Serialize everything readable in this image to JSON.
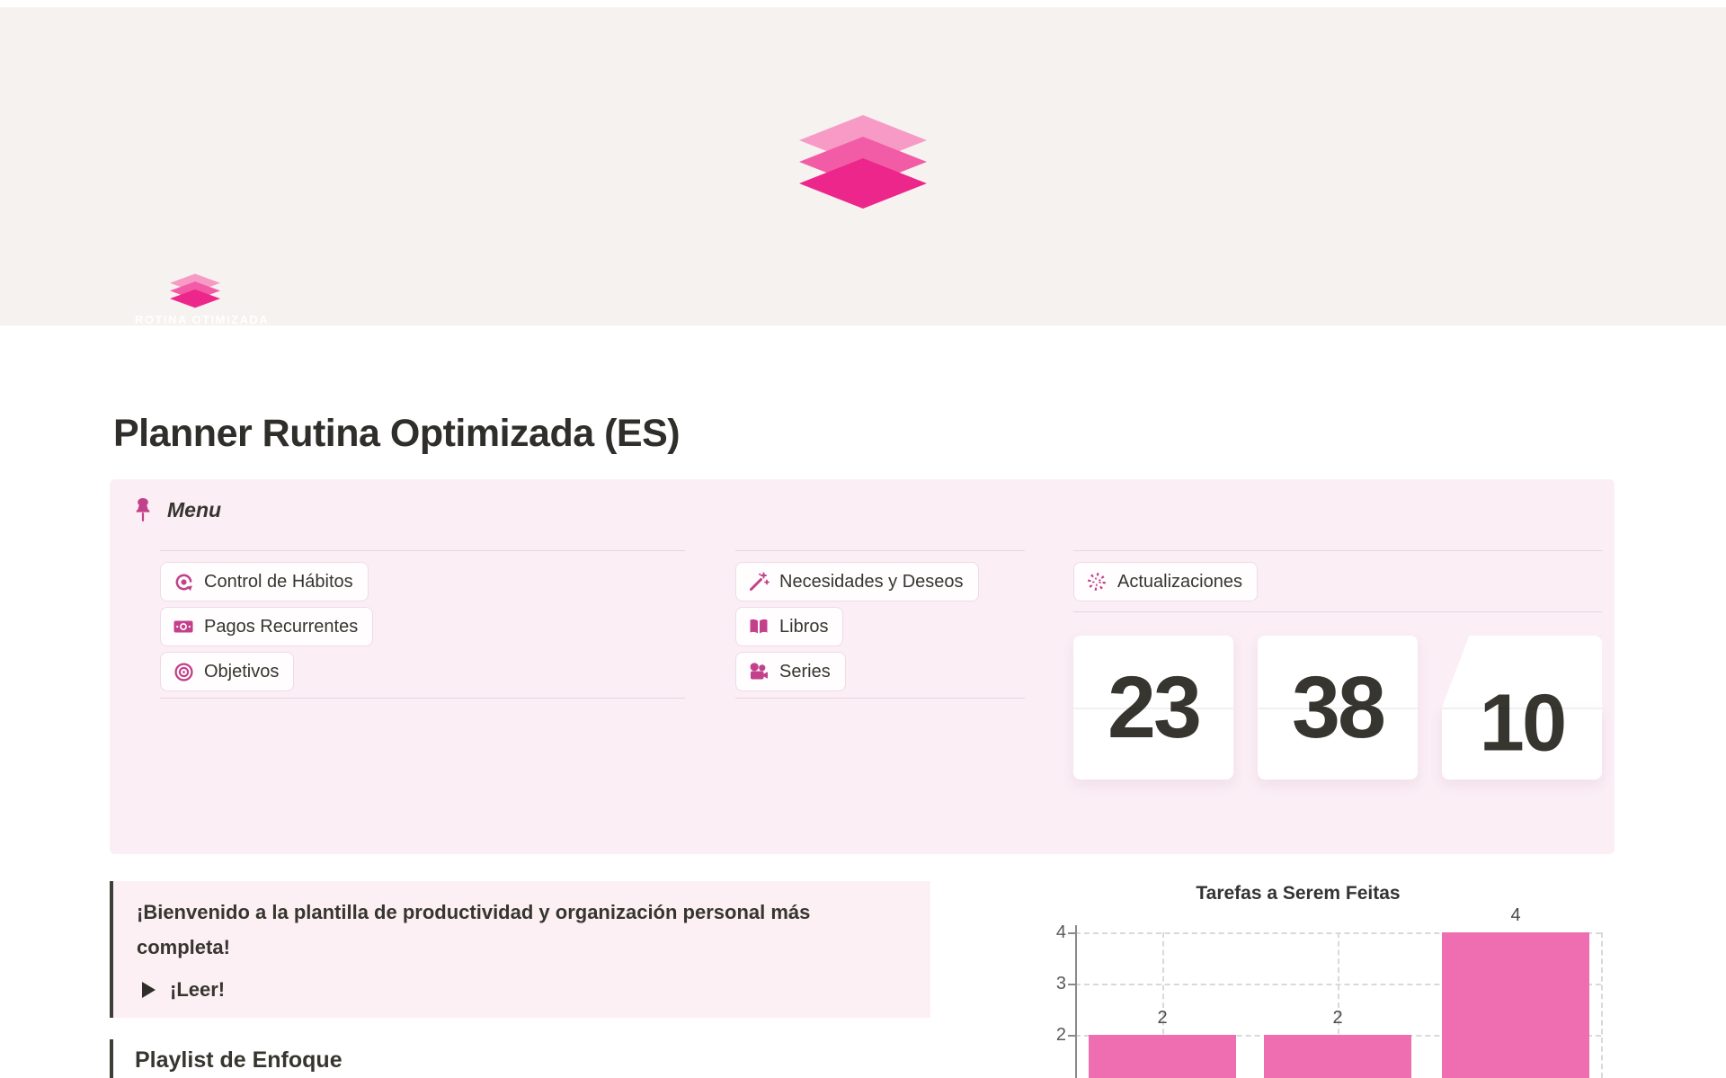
{
  "page": {
    "title": "Planner Rutina Optimizada (ES)",
    "icon_caption": "ROTINA OTIMIZADA"
  },
  "colors": {
    "accent_pink": "#ec268b",
    "logo_pink_light": "#f79bc6",
    "logo_pink_mid": "#f25ca6",
    "icon_magenta": "#c2418a",
    "cover_bg": "#f5f2ef",
    "menu_bg": "#fbeef5",
    "callout_bg": "#fcf0f5",
    "bar_pink": "#ef6eb2",
    "text_dark": "#37352f"
  },
  "menu": {
    "title": "Menu",
    "columns": [
      {
        "items": [
          {
            "icon": "habit-loop-icon",
            "label": "Control de Hábitos"
          },
          {
            "icon": "banknote-icon",
            "label": "Pagos Recurrentes"
          },
          {
            "icon": "target-icon",
            "label": "Objetivos"
          }
        ]
      },
      {
        "items": [
          {
            "icon": "magic-wand-icon",
            "label": "Necesidades y Deseos"
          },
          {
            "icon": "open-book-icon",
            "label": "Libros"
          },
          {
            "icon": "movie-camera-icon",
            "label": "Series"
          }
        ]
      },
      {
        "items": [
          {
            "icon": "burst-icon",
            "label": "Actualizaciones"
          }
        ]
      }
    ],
    "flip_clock": {
      "hours": "23",
      "minutes": "38",
      "seconds": "10"
    }
  },
  "callout": {
    "text": "¡Bienvenido a la plantilla de productividad y organización personal más completa!",
    "toggle_label": "¡Leer!"
  },
  "playlist": {
    "heading": "Playlist de Enfoque"
  },
  "chart_data": {
    "type": "bar",
    "title": "Tarefas a Serem Feitas",
    "categories": [
      "",
      "",
      ""
    ],
    "values": [
      2,
      2,
      4
    ],
    "data_labels": [
      "2",
      "2",
      "4"
    ],
    "yticks": [
      4,
      3,
      2
    ],
    "ylim": [
      0,
      4
    ],
    "grid": "dashed",
    "legend": "none",
    "bar_color": "#ef6eb2"
  }
}
